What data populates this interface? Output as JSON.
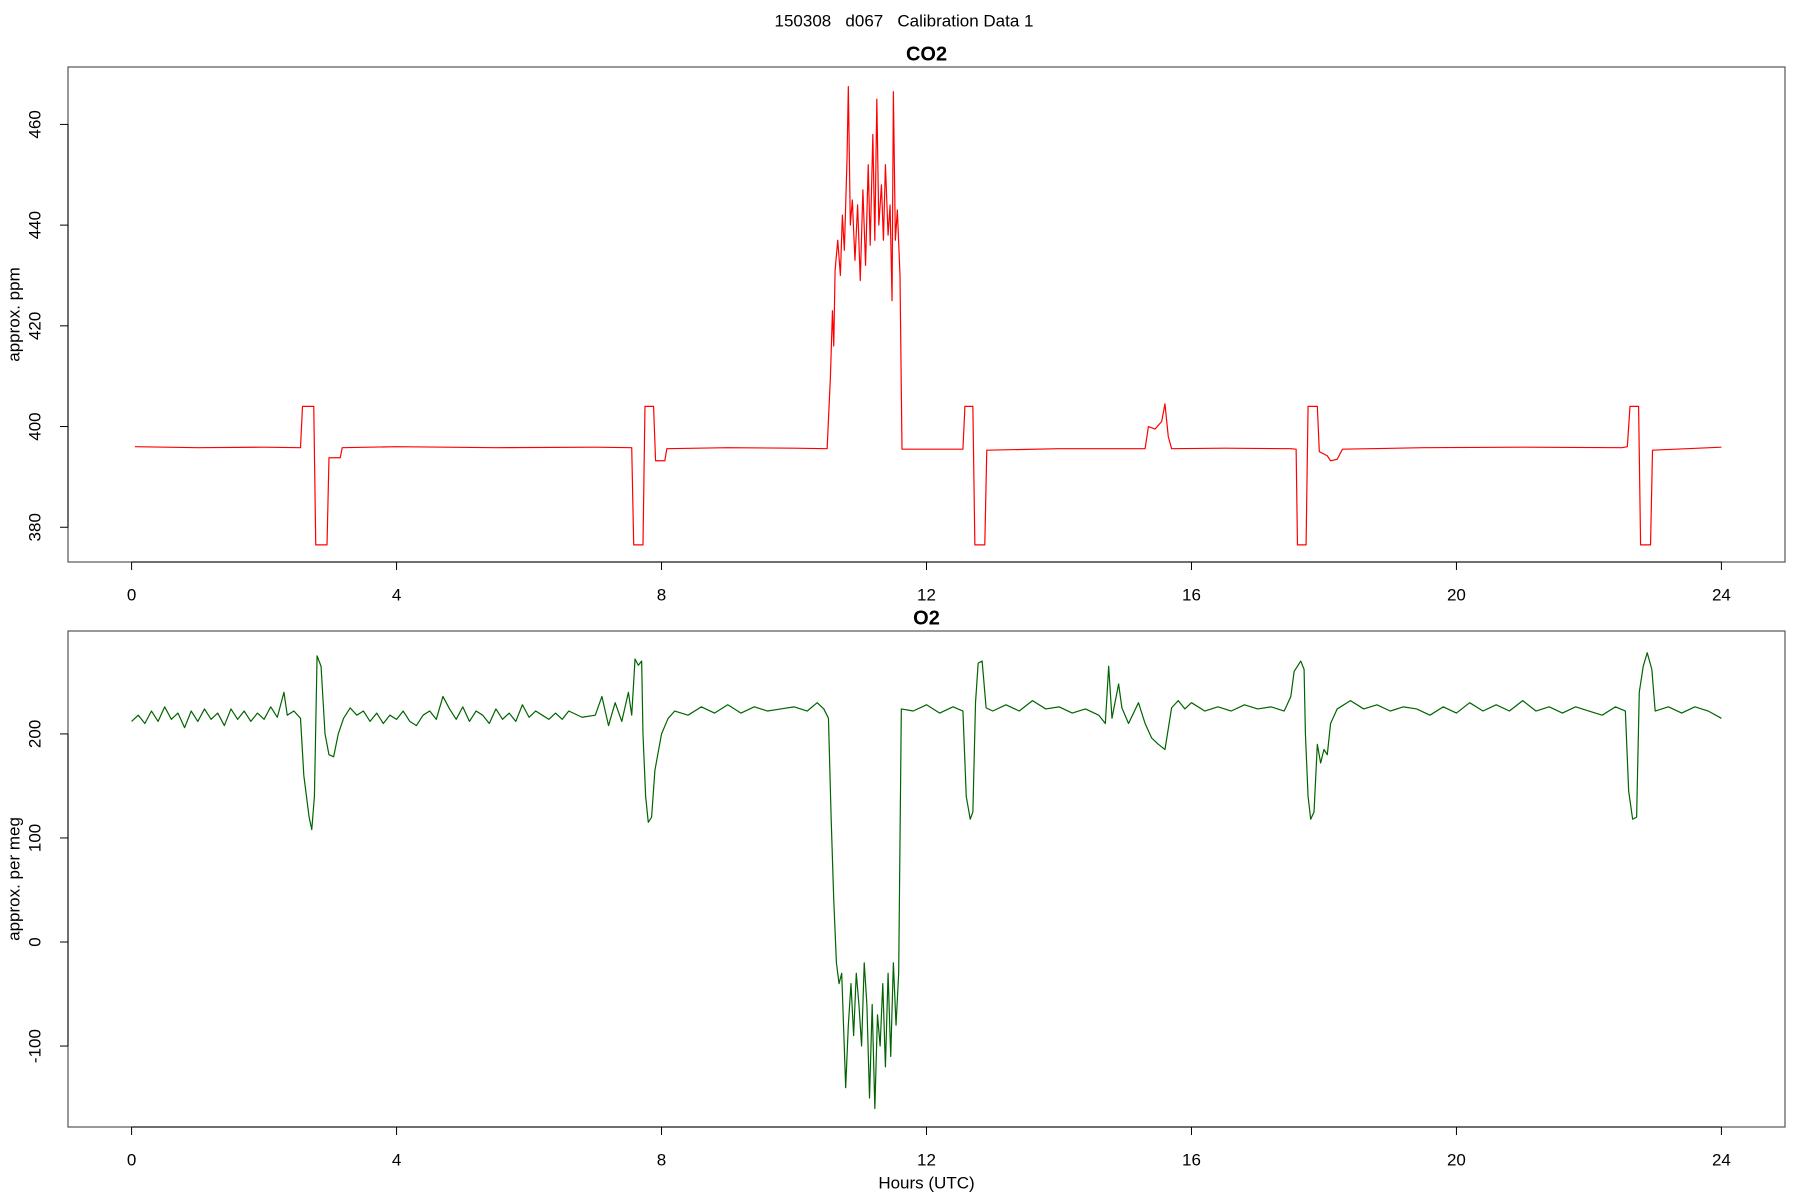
{
  "title": "150308   d067   Calibration Data 1",
  "chart_data": [
    {
      "type": "line",
      "title": "CO2",
      "ylabel": "approx. ppm",
      "xlim": [
        -0.96,
        24.96
      ],
      "xticks": [
        0,
        4,
        8,
        12,
        16,
        20,
        24
      ],
      "ylim": [
        373.1,
        471.4
      ],
      "yticks": [
        380,
        400,
        420,
        440,
        460
      ],
      "x": [
        0.05,
        1.0,
        2.0,
        2.55,
        2.58,
        2.75,
        2.78,
        2.95,
        2.98,
        3.15,
        3.18,
        4.0,
        5.5,
        7.0,
        7.55,
        7.58,
        7.72,
        7.75,
        7.88,
        7.91,
        8.05,
        8.08,
        9.0,
        10.0,
        10.5,
        10.55,
        10.58,
        10.6,
        10.62,
        10.66,
        10.7,
        10.73,
        10.76,
        10.8,
        10.82,
        10.85,
        10.88,
        10.92,
        10.96,
        11.0,
        11.04,
        11.08,
        11.12,
        11.15,
        11.19,
        11.22,
        11.25,
        11.28,
        11.32,
        11.35,
        11.38,
        11.42,
        11.45,
        11.48,
        11.5,
        11.53,
        11.56,
        11.6,
        11.63,
        12.0,
        12.55,
        12.58,
        12.7,
        12.73,
        12.88,
        12.91,
        14.0,
        15.3,
        15.35,
        15.45,
        15.55,
        15.6,
        15.65,
        15.7,
        16.5,
        17.5,
        17.58,
        17.6,
        17.73,
        17.76,
        17.9,
        17.93,
        18.05,
        18.1,
        18.2,
        18.28,
        19.5,
        21.0,
        22.5,
        22.58,
        22.62,
        22.75,
        22.78,
        22.93,
        22.96,
        24.0
      ],
      "series": [
        {
          "name": "CO2",
          "color": "#ff0000",
          "values": [
            396,
            395.8,
            395.9,
            395.8,
            404,
            404,
            376.5,
            376.5,
            393.8,
            393.8,
            395.8,
            396,
            395.8,
            395.9,
            395.8,
            376.5,
            376.5,
            404,
            404,
            393.2,
            393.2,
            395.6,
            395.8,
            395.7,
            395.6,
            410,
            423,
            416,
            431,
            437,
            430,
            442,
            435,
            453,
            467.5,
            440,
            445,
            433,
            444,
            429,
            447,
            432,
            452,
            436,
            458,
            437,
            465,
            440,
            448,
            437,
            452,
            438,
            444,
            425,
            466.5,
            437,
            443,
            430,
            395.5,
            395.5,
            395.5,
            404,
            404,
            376.5,
            376.5,
            395.3,
            395.6,
            395.6,
            400,
            399.5,
            401,
            404.5,
            398,
            395.6,
            395.7,
            395.6,
            395.5,
            376.5,
            376.5,
            404,
            404,
            395,
            394.2,
            393.2,
            393.5,
            395.5,
            395.8,
            395.9,
            395.8,
            396,
            404,
            404,
            376.5,
            376.5,
            395.3,
            395.9
          ]
        }
      ]
    },
    {
      "type": "line",
      "title": "O2",
      "ylabel": "approx. per meg",
      "xlabel": "Hours (UTC)",
      "xlim": [
        -0.96,
        24.96
      ],
      "xticks": [
        0,
        4,
        8,
        12,
        16,
        20,
        24
      ],
      "ylim": [
        -177.8,
        298.9
      ],
      "yticks": [
        -100,
        0,
        100,
        200
      ],
      "x": [
        0,
        0.1,
        0.2,
        0.3,
        0.4,
        0.5,
        0.6,
        0.7,
        0.8,
        0.9,
        1.0,
        1.1,
        1.2,
        1.3,
        1.4,
        1.5,
        1.6,
        1.7,
        1.8,
        1.9,
        2.0,
        2.1,
        2.2,
        2.3,
        2.35,
        2.45,
        2.55,
        2.6,
        2.68,
        2.72,
        2.76,
        2.8,
        2.86,
        2.92,
        2.98,
        3.05,
        3.12,
        3.2,
        3.3,
        3.4,
        3.5,
        3.6,
        3.7,
        3.8,
        3.9,
        4.0,
        4.1,
        4.2,
        4.3,
        4.4,
        4.5,
        4.6,
        4.7,
        4.8,
        4.9,
        5.0,
        5.1,
        5.2,
        5.3,
        5.4,
        5.5,
        5.6,
        5.7,
        5.8,
        5.9,
        6.0,
        6.1,
        6.2,
        6.3,
        6.4,
        6.5,
        6.6,
        6.8,
        7.0,
        7.1,
        7.2,
        7.3,
        7.4,
        7.5,
        7.55,
        7.6,
        7.65,
        7.7,
        7.72,
        7.76,
        7.8,
        7.85,
        7.9,
        8.0,
        8.1,
        8.2,
        8.4,
        8.6,
        8.8,
        9.0,
        9.2,
        9.4,
        9.6,
        9.8,
        10.0,
        10.2,
        10.35,
        10.45,
        10.52,
        10.56,
        10.6,
        10.64,
        10.68,
        10.72,
        10.78,
        10.82,
        10.86,
        10.9,
        10.94,
        10.98,
        11.02,
        11.06,
        11.1,
        11.14,
        11.18,
        11.22,
        11.26,
        11.3,
        11.34,
        11.38,
        11.42,
        11.46,
        11.5,
        11.54,
        11.58,
        11.62,
        11.8,
        12.0,
        12.2,
        12.4,
        12.55,
        12.6,
        12.66,
        12.7,
        12.74,
        12.78,
        12.84,
        12.9,
        13.0,
        13.2,
        13.4,
        13.6,
        13.8,
        14.0,
        14.2,
        14.4,
        14.6,
        14.7,
        14.75,
        14.8,
        14.9,
        14.95,
        15.05,
        15.2,
        15.3,
        15.4,
        15.5,
        15.6,
        15.7,
        15.8,
        15.9,
        16.0,
        16.2,
        16.4,
        16.6,
        16.8,
        17.0,
        17.2,
        17.4,
        17.5,
        17.55,
        17.65,
        17.7,
        17.72,
        17.76,
        17.8,
        17.85,
        17.9,
        17.95,
        18.0,
        18.05,
        18.1,
        18.2,
        18.4,
        18.6,
        18.8,
        19.0,
        19.2,
        19.4,
        19.6,
        19.8,
        20.0,
        20.2,
        20.4,
        20.6,
        20.8,
        21.0,
        21.2,
        21.4,
        21.6,
        21.8,
        22.0,
        22.2,
        22.4,
        22.55,
        22.6,
        22.66,
        22.72,
        22.76,
        22.82,
        22.88,
        22.95,
        23.0,
        23.2,
        23.4,
        23.6,
        23.8,
        24.0
      ],
      "series": [
        {
          "name": "O2",
          "color": "#006400",
          "values": [
            212,
            218,
            210,
            222,
            212,
            226,
            214,
            220,
            206,
            222,
            212,
            224,
            214,
            220,
            208,
            224,
            214,
            222,
            212,
            220,
            214,
            226,
            216,
            240,
            218,
            222,
            215,
            160,
            120,
            108,
            140,
            275,
            265,
            200,
            180,
            178,
            200,
            215,
            225,
            218,
            222,
            212,
            220,
            210,
            218,
            214,
            222,
            212,
            208,
            218,
            222,
            214,
            236,
            224,
            214,
            226,
            212,
            222,
            218,
            210,
            224,
            214,
            220,
            212,
            228,
            216,
            222,
            218,
            214,
            220,
            214,
            222,
            216,
            218,
            236,
            208,
            230,
            212,
            240,
            218,
            272,
            266,
            270,
            200,
            140,
            115,
            120,
            165,
            200,
            215,
            222,
            218,
            226,
            220,
            228,
            220,
            226,
            222,
            224,
            226,
            222,
            230,
            224,
            215,
            120,
            40,
            -20,
            -40,
            -30,
            -140,
            -80,
            -40,
            -90,
            -30,
            -60,
            -100,
            -20,
            -60,
            -150,
            -60,
            -160,
            -70,
            -100,
            -40,
            -120,
            -30,
            -110,
            -20,
            -80,
            -30,
            224,
            222,
            228,
            220,
            226,
            222,
            140,
            118,
            125,
            230,
            268,
            270,
            225,
            222,
            228,
            222,
            232,
            224,
            226,
            220,
            224,
            218,
            210,
            265,
            215,
            248,
            225,
            210,
            230,
            210,
            196,
            190,
            185,
            225,
            232,
            224,
            230,
            222,
            226,
            222,
            228,
            224,
            226,
            222,
            236,
            260,
            270,
            262,
            200,
            140,
            118,
            125,
            190,
            172,
            185,
            180,
            210,
            224,
            232,
            224,
            228,
            222,
            226,
            224,
            218,
            226,
            220,
            230,
            222,
            228,
            222,
            232,
            222,
            226,
            220,
            226,
            222,
            218,
            226,
            222,
            145,
            118,
            120,
            240,
            265,
            278,
            262,
            222,
            226,
            220,
            226,
            222,
            215
          ]
        }
      ]
    }
  ]
}
